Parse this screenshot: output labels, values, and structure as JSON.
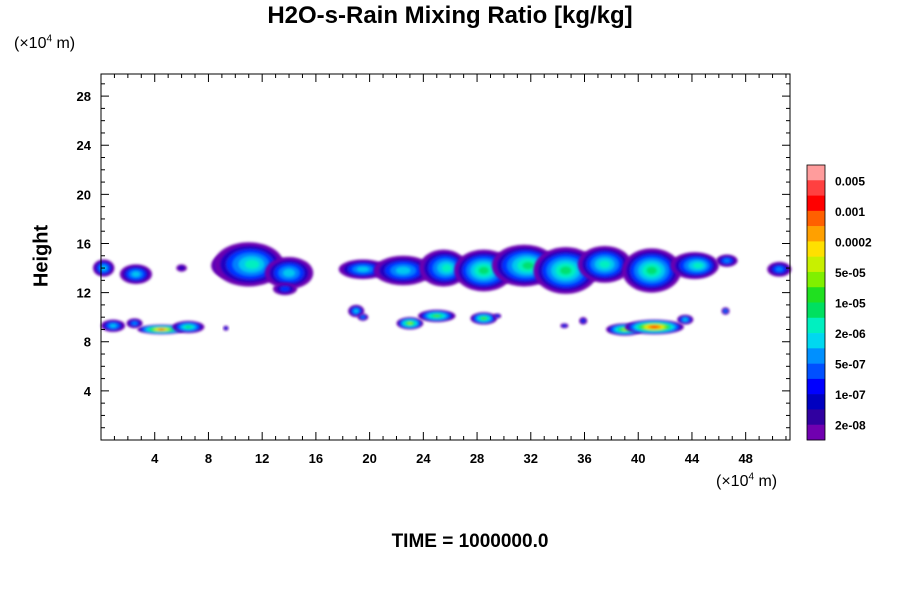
{
  "chart_data": {
    "type": "heatmap",
    "title": "H2O-s-Rain Mixing Ratio [kg/kg]",
    "ylabel": "Height",
    "xlabel": "",
    "x_unit_label": "(×10⁴ m)",
    "y_unit_label": "(×10⁴ m)",
    "x_ticks": [
      4,
      8,
      12,
      16,
      20,
      24,
      28,
      32,
      36,
      40,
      44,
      48
    ],
    "y_ticks": [
      4,
      8,
      12,
      16,
      20,
      24,
      28
    ],
    "xlim": [
      0,
      51.3
    ],
    "ylim": [
      0,
      29.8
    ],
    "colorbar": {
      "labels": [
        "0.005",
        "0.001",
        "0.0002",
        "5e-05",
        "1e-05",
        "2e-06",
        "5e-07",
        "1e-07",
        "2e-08"
      ],
      "colors_top_to_bottom": [
        "#ff9c9c",
        "#ff4040",
        "#ff0000",
        "#ff6000",
        "#ffa000",
        "#ffe000",
        "#c8f000",
        "#80f000",
        "#20e020",
        "#00e060",
        "#00f0c0",
        "#00d8f0",
        "#0090ff",
        "#0050ff",
        "#0000ff",
        "#0000c0",
        "#3000a0",
        "#7000b0"
      ]
    },
    "features": [
      {
        "name": "upper-cloud-band",
        "x_range": [
          0,
          51
        ],
        "y_center": 14,
        "max_level": "5e-05"
      },
      {
        "name": "lower-rain-cluster-west",
        "x_range": [
          0,
          8
        ],
        "y_center": 9,
        "max_level": "0.001"
      },
      {
        "name": "lower-rain-cluster-central",
        "x_range": [
          22,
          30
        ],
        "y_center": 9.6,
        "max_level": "0.0002"
      },
      {
        "name": "lower-rain-cluster-east",
        "x_range": [
          38,
          44
        ],
        "y_center": 9,
        "max_level": "0.001"
      }
    ],
    "grid": false,
    "legend": "colorbar-right"
  },
  "footer": {
    "time_label": "TIME = 1000000.0"
  }
}
